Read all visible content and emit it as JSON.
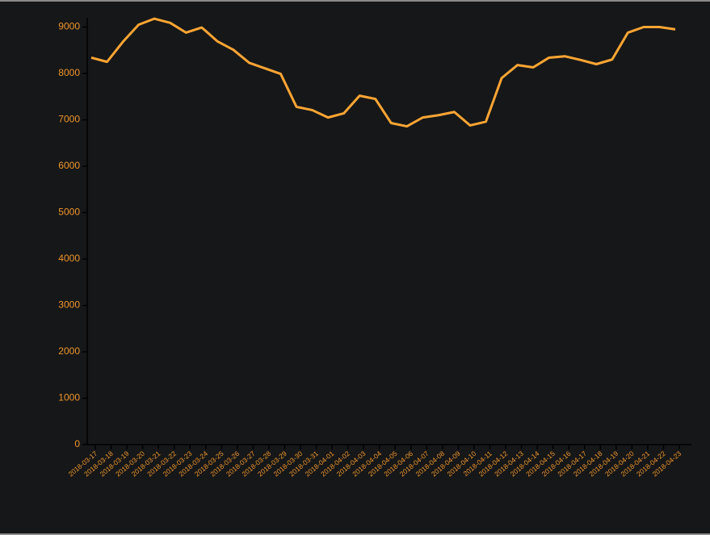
{
  "chart_data": {
    "type": "line",
    "x": [
      "2018-03-17",
      "2018-03-18",
      "2018-03-19",
      "2018-03-20",
      "2018-03-21",
      "2018-03-22",
      "2018-03-23",
      "2018-03-24",
      "2018-03-25",
      "2018-03-26",
      "2018-03-27",
      "2018-03-28",
      "2018-03-29",
      "2018-03-30",
      "2018-03-31",
      "2018-04-01",
      "2018-04-02",
      "2018-04-03",
      "2018-04-04",
      "2018-04-05",
      "2018-04-06",
      "2018-04-07",
      "2018-04-08",
      "2018-04-09",
      "2018-04-10",
      "2018-04-11",
      "2018-04-12",
      "2018-04-13",
      "2018-04-14",
      "2018-04-15",
      "2018-04-16",
      "2018-04-17",
      "2018-04-18",
      "2018-04-19",
      "2018-04-20",
      "2018-04-21",
      "2018-04-22",
      "2018-04-23"
    ],
    "series": [
      {
        "color": "#ffa534",
        "values": [
          8340,
          8250,
          8680,
          9050,
          9180,
          9090,
          8880,
          8990,
          8690,
          8510,
          8230,
          8110,
          7990,
          7280,
          7210,
          7050,
          7140,
          7520,
          7450,
          6930,
          6860,
          7050,
          7100,
          7170,
          6880,
          6960,
          7900,
          8180,
          8130,
          8340,
          8370,
          8290,
          8200,
          8300,
          8880,
          9000,
          9000,
          8950
        ]
      }
    ],
    "ylim": [
      0,
      9200
    ],
    "yticks": [
      0,
      1000,
      2000,
      3000,
      4000,
      5000,
      6000,
      7000,
      8000,
      9000
    ]
  }
}
